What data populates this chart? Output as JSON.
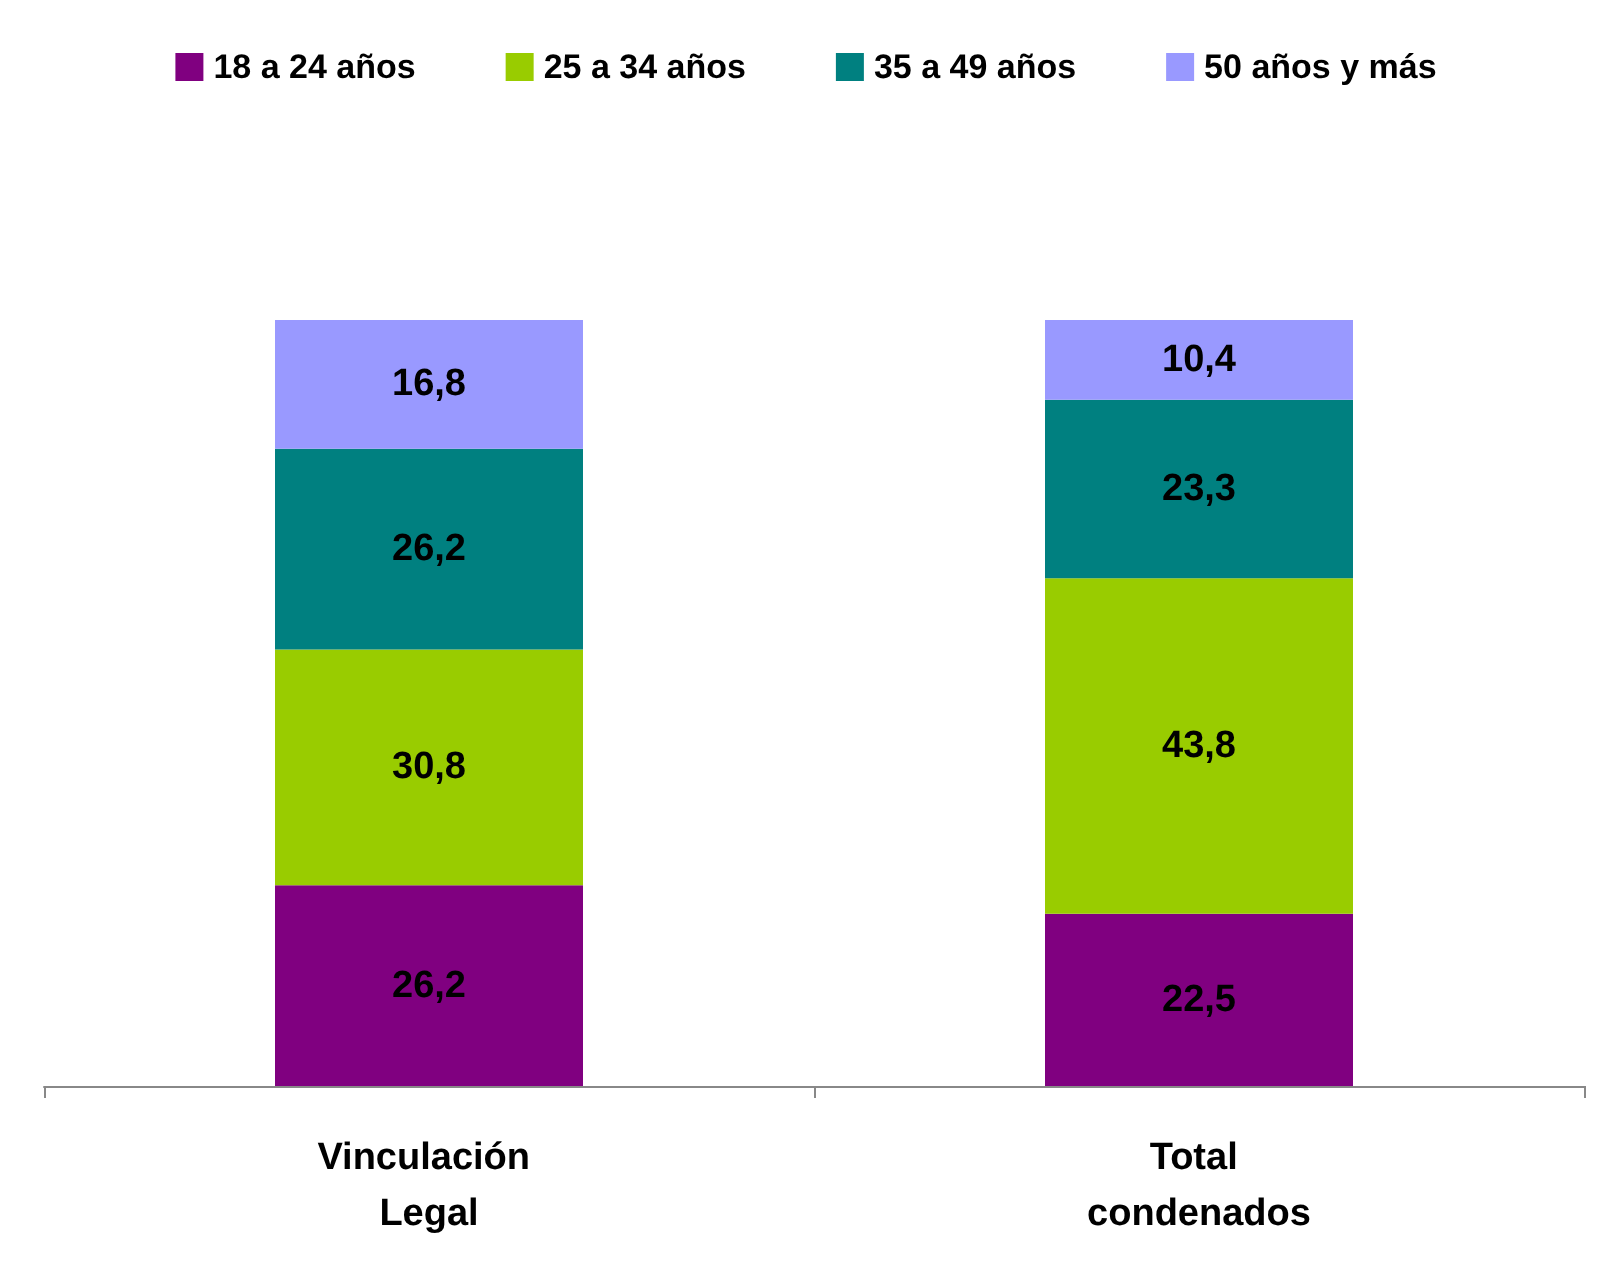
{
  "chart_data": {
    "type": "bar",
    "stacked": true,
    "legend": "top",
    "categories": [
      "Vinculación Legal",
      "Total condenados"
    ],
    "series": [
      {
        "name": "18 a 24 años",
        "color": "#800080",
        "values": [
          26.2,
          22.5
        ],
        "value_labels": [
          "26,2",
          "22,5"
        ]
      },
      {
        "name": "25 a 34 años",
        "color": "#99cc00",
        "values": [
          30.8,
          43.8
        ],
        "value_labels": [
          "30,8",
          "43,8"
        ]
      },
      {
        "name": "35 a 49 años",
        "color": "#008080",
        "values": [
          26.2,
          23.3
        ],
        "value_labels": [
          "26,2",
          "23,3"
        ]
      },
      {
        "name": "50 años y más",
        "color": "#9999ff",
        "values": [
          16.8,
          10.4
        ],
        "value_labels": [
          "16,8",
          "10,4"
        ]
      }
    ]
  }
}
